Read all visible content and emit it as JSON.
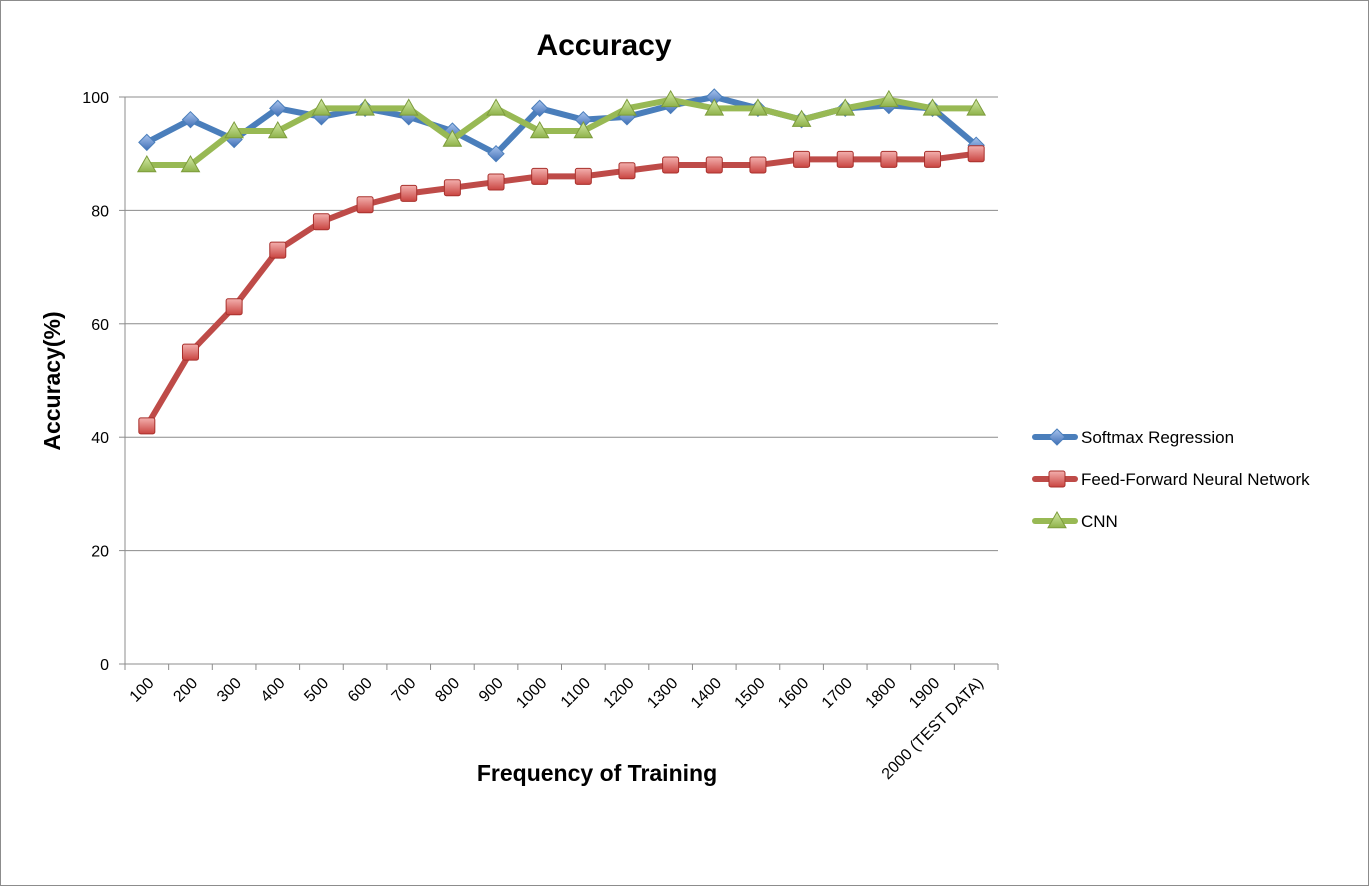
{
  "chart_data": {
    "type": "line",
    "title": "Accuracy",
    "xlabel": "Frequency of Training",
    "ylabel": "Accuracy(%)",
    "categories": [
      "100",
      "200",
      "300",
      "400",
      "500",
      "600",
      "700",
      "800",
      "900",
      "1000",
      "1100",
      "1200",
      "1300",
      "1400",
      "1500",
      "1600",
      "1700",
      "1800",
      "1900",
      "2000 (TEST DATA)"
    ],
    "ylim": [
      0,
      100
    ],
    "yticks": [
      0,
      20,
      40,
      60,
      80,
      100
    ],
    "grid": true,
    "legend_position": "right",
    "series": [
      {
        "name": "Softmax Regression",
        "color": "#4a7ebb",
        "marker": "diamond",
        "values": [
          92,
          96,
          92.5,
          98,
          96.5,
          98,
          96.5,
          94,
          90,
          98,
          96,
          96.5,
          98.5,
          100,
          98,
          96,
          98,
          98.5,
          98,
          91.5
        ]
      },
      {
        "name": "Feed-Forward Neural Network",
        "color": "#be4b48",
        "marker": "square",
        "values": [
          42,
          55,
          63,
          73,
          78,
          81,
          83,
          84,
          85,
          86,
          86,
          87,
          88,
          88,
          88,
          89,
          89,
          89,
          89,
          90
        ]
      },
      {
        "name": "CNN",
        "color": "#98b954",
        "marker": "triangle",
        "values": [
          88,
          88,
          94,
          94,
          98,
          98,
          98,
          92.5,
          98,
          94,
          94,
          98,
          99.5,
          98,
          98,
          96,
          98,
          99.5,
          98,
          98
        ]
      }
    ]
  }
}
